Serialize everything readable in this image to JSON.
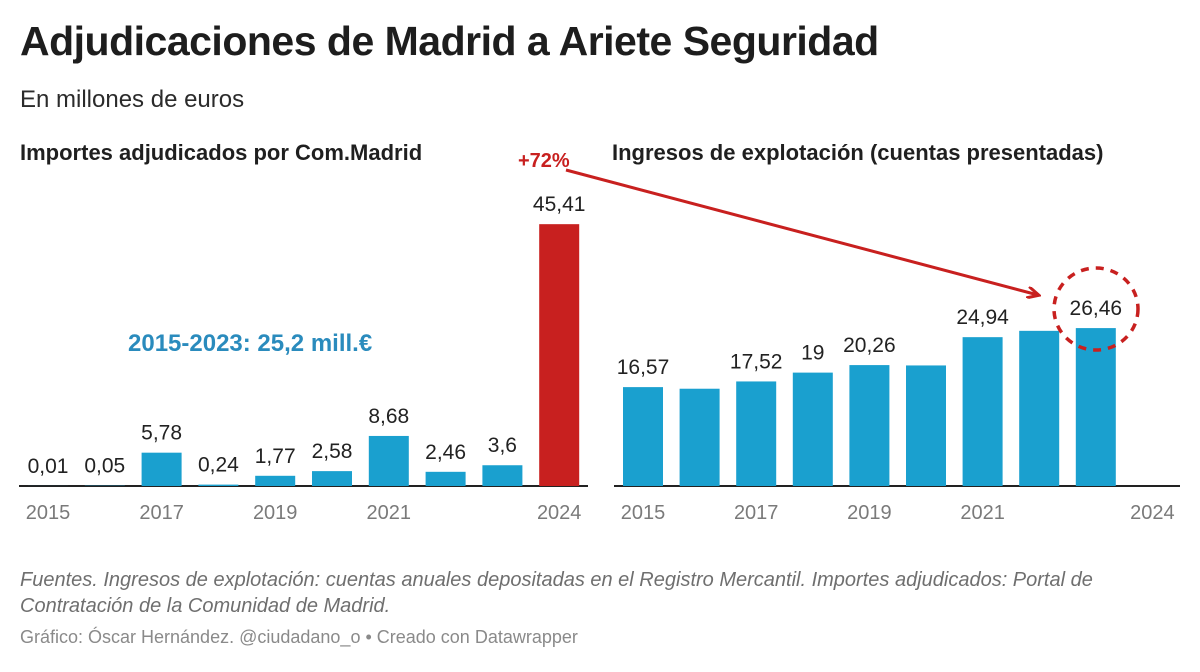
{
  "header": {
    "title": "Adjudicaciones de Madrid a Ariete Seguridad",
    "subtitle": "En millones de euros"
  },
  "annotations": {
    "left_total": "2015-2023: 25,2 mill.€",
    "increase": "+72%"
  },
  "footer": {
    "sources": "Fuentes. Ingresos de explotación: cuentas anuales depositadas en el Registro Mercantil. Importes adjudicados: Portal de Contratación de la Comunidad de Madrid.",
    "credit": "Gráfico: Óscar Hernández. @ciudadano_o • Creado con Datawrapper"
  },
  "colors": {
    "bar": "#1aa0cf",
    "highlight": "#c8201f",
    "annotation_blue": "#2a8bbd"
  },
  "chart_data": [
    {
      "type": "bar",
      "title": "Importes adjudicados por Com.Madrid",
      "categories": [
        "2015",
        "2016",
        "2017",
        "2018",
        "2019",
        "2020",
        "2021",
        "2022",
        "2023",
        "2024"
      ],
      "values": [
        0.01,
        0.05,
        5.78,
        0.24,
        1.77,
        2.58,
        8.68,
        2.46,
        3.6,
        45.41
      ],
      "value_labels": [
        "0,01",
        "0,05",
        "5,78",
        "0,24",
        "1,77",
        "2,58",
        "8,68",
        "2,46",
        "3,6",
        "45,41"
      ],
      "tick_labels": [
        "2015",
        "",
        "2017",
        "",
        "2019",
        "",
        "2021",
        "",
        "",
        "2024"
      ],
      "highlight": [
        "",
        "",
        "",
        "",
        "",
        "",
        "",
        "",
        "",
        "2024"
      ],
      "ylim": [
        0,
        47
      ],
      "xlabel": "",
      "ylabel": ""
    },
    {
      "type": "bar",
      "title": "Ingresos de explotación (cuentas presentadas)",
      "categories": [
        "2015",
        "2016",
        "2017",
        "2018",
        "2019",
        "2020",
        "2021",
        "2022",
        "2023",
        "2024"
      ],
      "values": [
        16.57,
        16.3,
        17.52,
        19,
        20.26,
        20.2,
        24.94,
        26.0,
        26.46,
        null
      ],
      "value_labels": [
        "16,57",
        "",
        "17,52",
        "19",
        "20,26",
        "",
        "24,94",
        "",
        "26,46",
        ""
      ],
      "tick_labels": [
        "2015",
        "",
        "2017",
        "",
        "2019",
        "",
        "2021",
        "",
        "",
        "2024"
      ],
      "ylim": [
        0,
        45.41
      ],
      "xlabel": "",
      "ylabel": ""
    }
  ]
}
